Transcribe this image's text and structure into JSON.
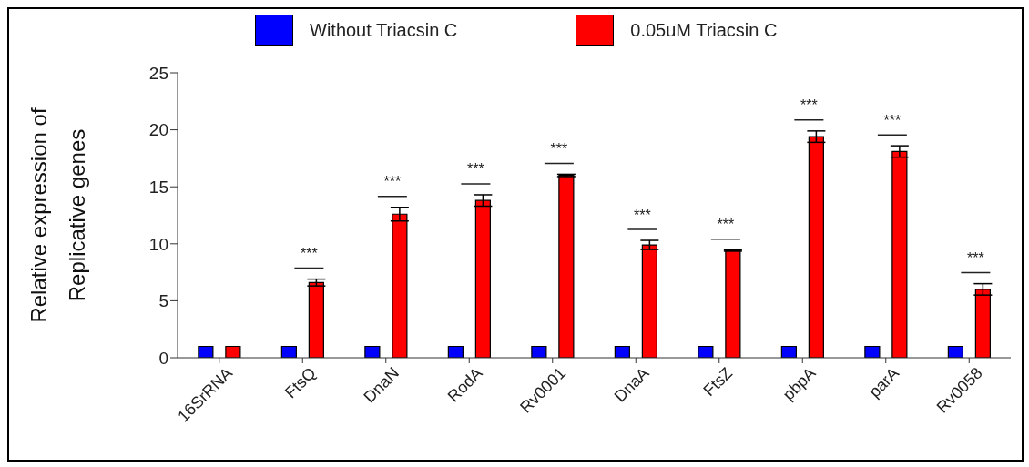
{
  "chart_data": {
    "type": "bar",
    "ylabel": "Relative expression of Replicative genes",
    "categories": [
      "16SrRNA",
      "FtsQ",
      "DnaN",
      "RodA",
      "Rv0001",
      "DnaA",
      "FtsZ",
      "pbpA",
      "parA",
      "Rv0058"
    ],
    "series": [
      {
        "name": "Without Triacsin C",
        "color": "#0000ff",
        "values": [
          1,
          1,
          1,
          1,
          1,
          1,
          1,
          1,
          1,
          1
        ]
      },
      {
        "name": "0.05uM Triacsin C",
        "color": "#ff0000",
        "values": [
          1,
          6.6,
          12.6,
          13.8,
          16.0,
          9.9,
          9.4,
          19.4,
          18.1,
          6.0
        ],
        "errors": [
          null,
          0.3,
          0.6,
          0.5,
          0.1,
          0.4,
          0.05,
          0.5,
          0.5,
          0.5
        ]
      }
    ],
    "annotations": [
      "***",
      "***",
      "***",
      "***",
      "***",
      "***",
      "***",
      "***",
      "***"
    ],
    "ylim": [
      0,
      25
    ],
    "yticks": [
      0,
      5,
      10,
      15,
      20,
      25
    ],
    "legend": "top"
  }
}
